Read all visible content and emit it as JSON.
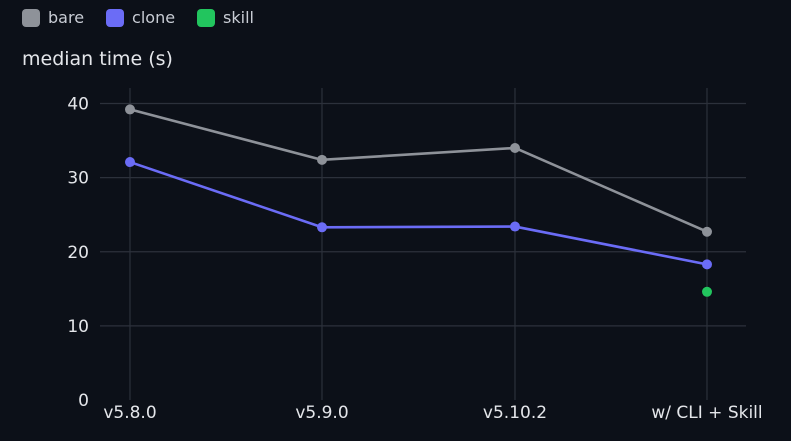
{
  "chart_data": {
    "type": "line",
    "title": "",
    "xlabel": "",
    "ylabel": "median time (s)",
    "categories": [
      "v5.8.0",
      "v5.9.0",
      "v5.10.2",
      "w/ CLI + Skill"
    ],
    "ylim": [
      0,
      40
    ],
    "yticks": [
      0,
      10,
      20,
      30,
      40
    ],
    "grid": true,
    "legend_position": "top-left",
    "series": [
      {
        "name": "bare",
        "color": "#8e9299",
        "values": [
          39.2,
          32.4,
          34.0,
          22.7
        ]
      },
      {
        "name": "clone",
        "color": "#6b6cf6",
        "values": [
          32.1,
          23.3,
          23.4,
          18.3
        ]
      },
      {
        "name": "skill",
        "color": "#22c55e",
        "values": [
          null,
          null,
          null,
          14.6
        ]
      }
    ]
  }
}
